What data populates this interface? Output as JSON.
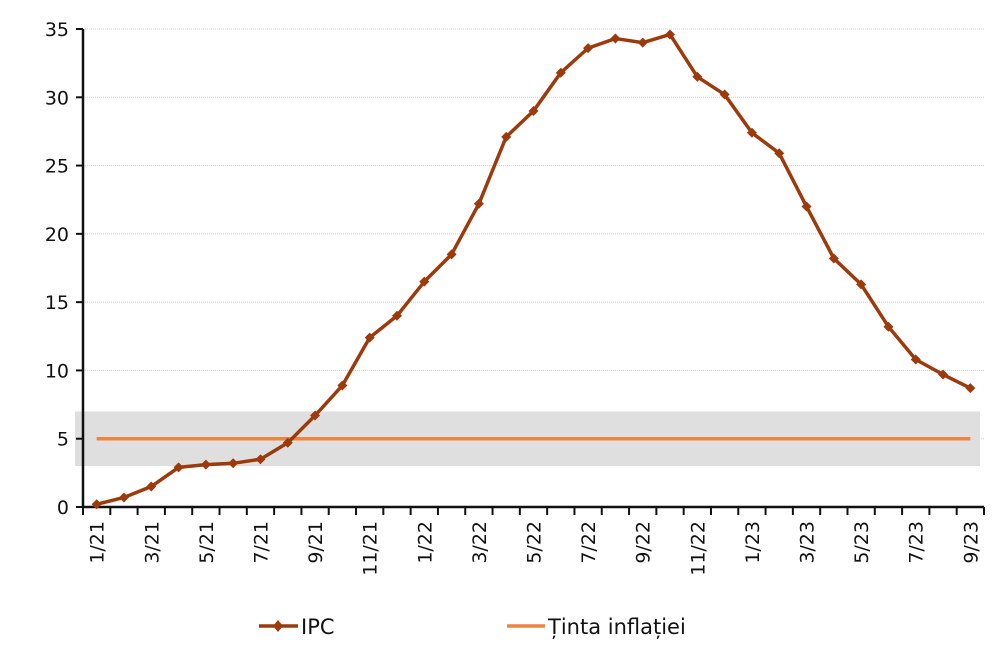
{
  "chart_data": {
    "type": "line",
    "title": "",
    "xlabel": "",
    "ylabel": "",
    "ylim": [
      0,
      35
    ],
    "yticks": [
      "0",
      "5",
      "10",
      "15",
      "20",
      "25",
      "30",
      "35"
    ],
    "grid": true,
    "categories": [
      "1/21",
      "2/21",
      "3/21",
      "4/21",
      "5/21",
      "6/21",
      "7/21",
      "8/21",
      "9/21",
      "10/21",
      "11/21",
      "12/21",
      "1/22",
      "2/22",
      "3/22",
      "4/22",
      "5/22",
      "6/22",
      "7/22",
      "8/22",
      "9/22",
      "10/22",
      "11/22",
      "12/22",
      "1/23",
      "2/23",
      "3/23",
      "4/23",
      "5/23",
      "6/23",
      "7/23",
      "8/23",
      "9/23"
    ],
    "xtick_labels": [
      "1/21",
      "3/21",
      "5/21",
      "7/21",
      "9/21",
      "11/21",
      "1/22",
      "3/22",
      "5/22",
      "7/22",
      "9/22",
      "11/22",
      "1/23",
      "3/23",
      "5/23",
      "7/23",
      "9/23"
    ],
    "series": [
      {
        "name": "IPC",
        "color": "#9C3A0C",
        "values": [
          0.2,
          0.7,
          1.5,
          2.9,
          3.1,
          3.2,
          3.5,
          4.7,
          6.7,
          8.9,
          12.4,
          14.0,
          16.5,
          18.5,
          22.2,
          27.1,
          29.0,
          31.8,
          33.6,
          34.3,
          34.0,
          34.6,
          31.5,
          30.2,
          27.4,
          25.9,
          22.0,
          18.2,
          16.3,
          13.2,
          10.8,
          9.7,
          8.7
        ]
      },
      {
        "name": "Ținta inflației",
        "color": "#EE8440",
        "value": 5
      }
    ],
    "target_band": [
      3,
      7
    ],
    "legend": "bottom"
  }
}
